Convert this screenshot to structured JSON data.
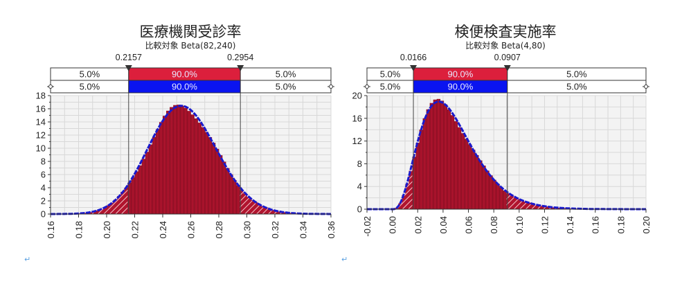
{
  "chart_data": [
    {
      "type": "bar",
      "title": "医療機関受診率",
      "subtitle": "比較対象 Beta(82,240)",
      "distribution": {
        "name": "Beta",
        "alpha": 82,
        "beta": 240
      },
      "xlabel": "",
      "ylabel": "",
      "xlim": [
        0.16,
        0.36
      ],
      "ylim": [
        0,
        18
      ],
      "x_ticks": [
        "0.16",
        "0.18",
        "0.20",
        "0.22",
        "0.24",
        "0.26",
        "0.28",
        "0.30",
        "0.32",
        "0.34",
        "0.36"
      ],
      "y_ticks": [
        "0",
        "2",
        "4",
        "6",
        "8",
        "10",
        "12",
        "14",
        "16",
        "18"
      ],
      "grid": true,
      "markers": [
        {
          "label": "0.2157",
          "value": 0.2157
        },
        {
          "label": "0.2954",
          "value": 0.2954
        }
      ],
      "bands": {
        "top_row": [
          "5.0%",
          "90.0%",
          "5.0%"
        ],
        "bottom_row": [
          "5.0%",
          "90.0%",
          "5.0%"
        ]
      },
      "series": [
        {
          "name": "Simulated histogram",
          "color": "#b0142e"
        },
        {
          "name": "Beta(82,240) density",
          "color": "#1a1acc"
        }
      ],
      "peak": {
        "x": 0.254,
        "y": 16.4
      }
    },
    {
      "type": "bar",
      "title": "検便検査実施率",
      "subtitle": "比較対象 Beta(4,80)",
      "distribution": {
        "name": "Beta",
        "alpha": 4,
        "beta": 80
      },
      "xlabel": "",
      "ylabel": "",
      "xlim": [
        -0.02,
        0.2
      ],
      "ylim": [
        0,
        20
      ],
      "x_ticks": [
        "-0.02",
        "0.00",
        "0.02",
        "0.04",
        "0.06",
        "0.08",
        "0.10",
        "0.12",
        "0.14",
        "0.16",
        "0.18",
        "0.20"
      ],
      "y_ticks": [
        "0",
        "4",
        "8",
        "12",
        "16",
        "20"
      ],
      "grid": true,
      "markers": [
        {
          "label": "0.0166",
          "value": 0.0166
        },
        {
          "label": "0.0907",
          "value": 0.0907
        }
      ],
      "bands": {
        "top_row": [
          "5.0%",
          "90.0%",
          "5.0%"
        ],
        "bottom_row": [
          "5.0%",
          "90.0%",
          "5.0%"
        ]
      },
      "series": [
        {
          "name": "Simulated histogram",
          "color": "#b0142e"
        },
        {
          "name": "Beta(4,80) density",
          "color": "#1a1acc"
        }
      ],
      "peak": {
        "x": 0.036,
        "y": 18.9
      }
    }
  ],
  "colors": {
    "histogram": "#b0142e",
    "histogram_dark": "#8e0f24",
    "density_line": "#1a1acc",
    "band_red": "#dc1f3c",
    "band_blue": "#0a14f0",
    "plot_bg": "#f3f3f3",
    "grid": "#d8d8d8"
  },
  "paragraph_mark": "↵"
}
